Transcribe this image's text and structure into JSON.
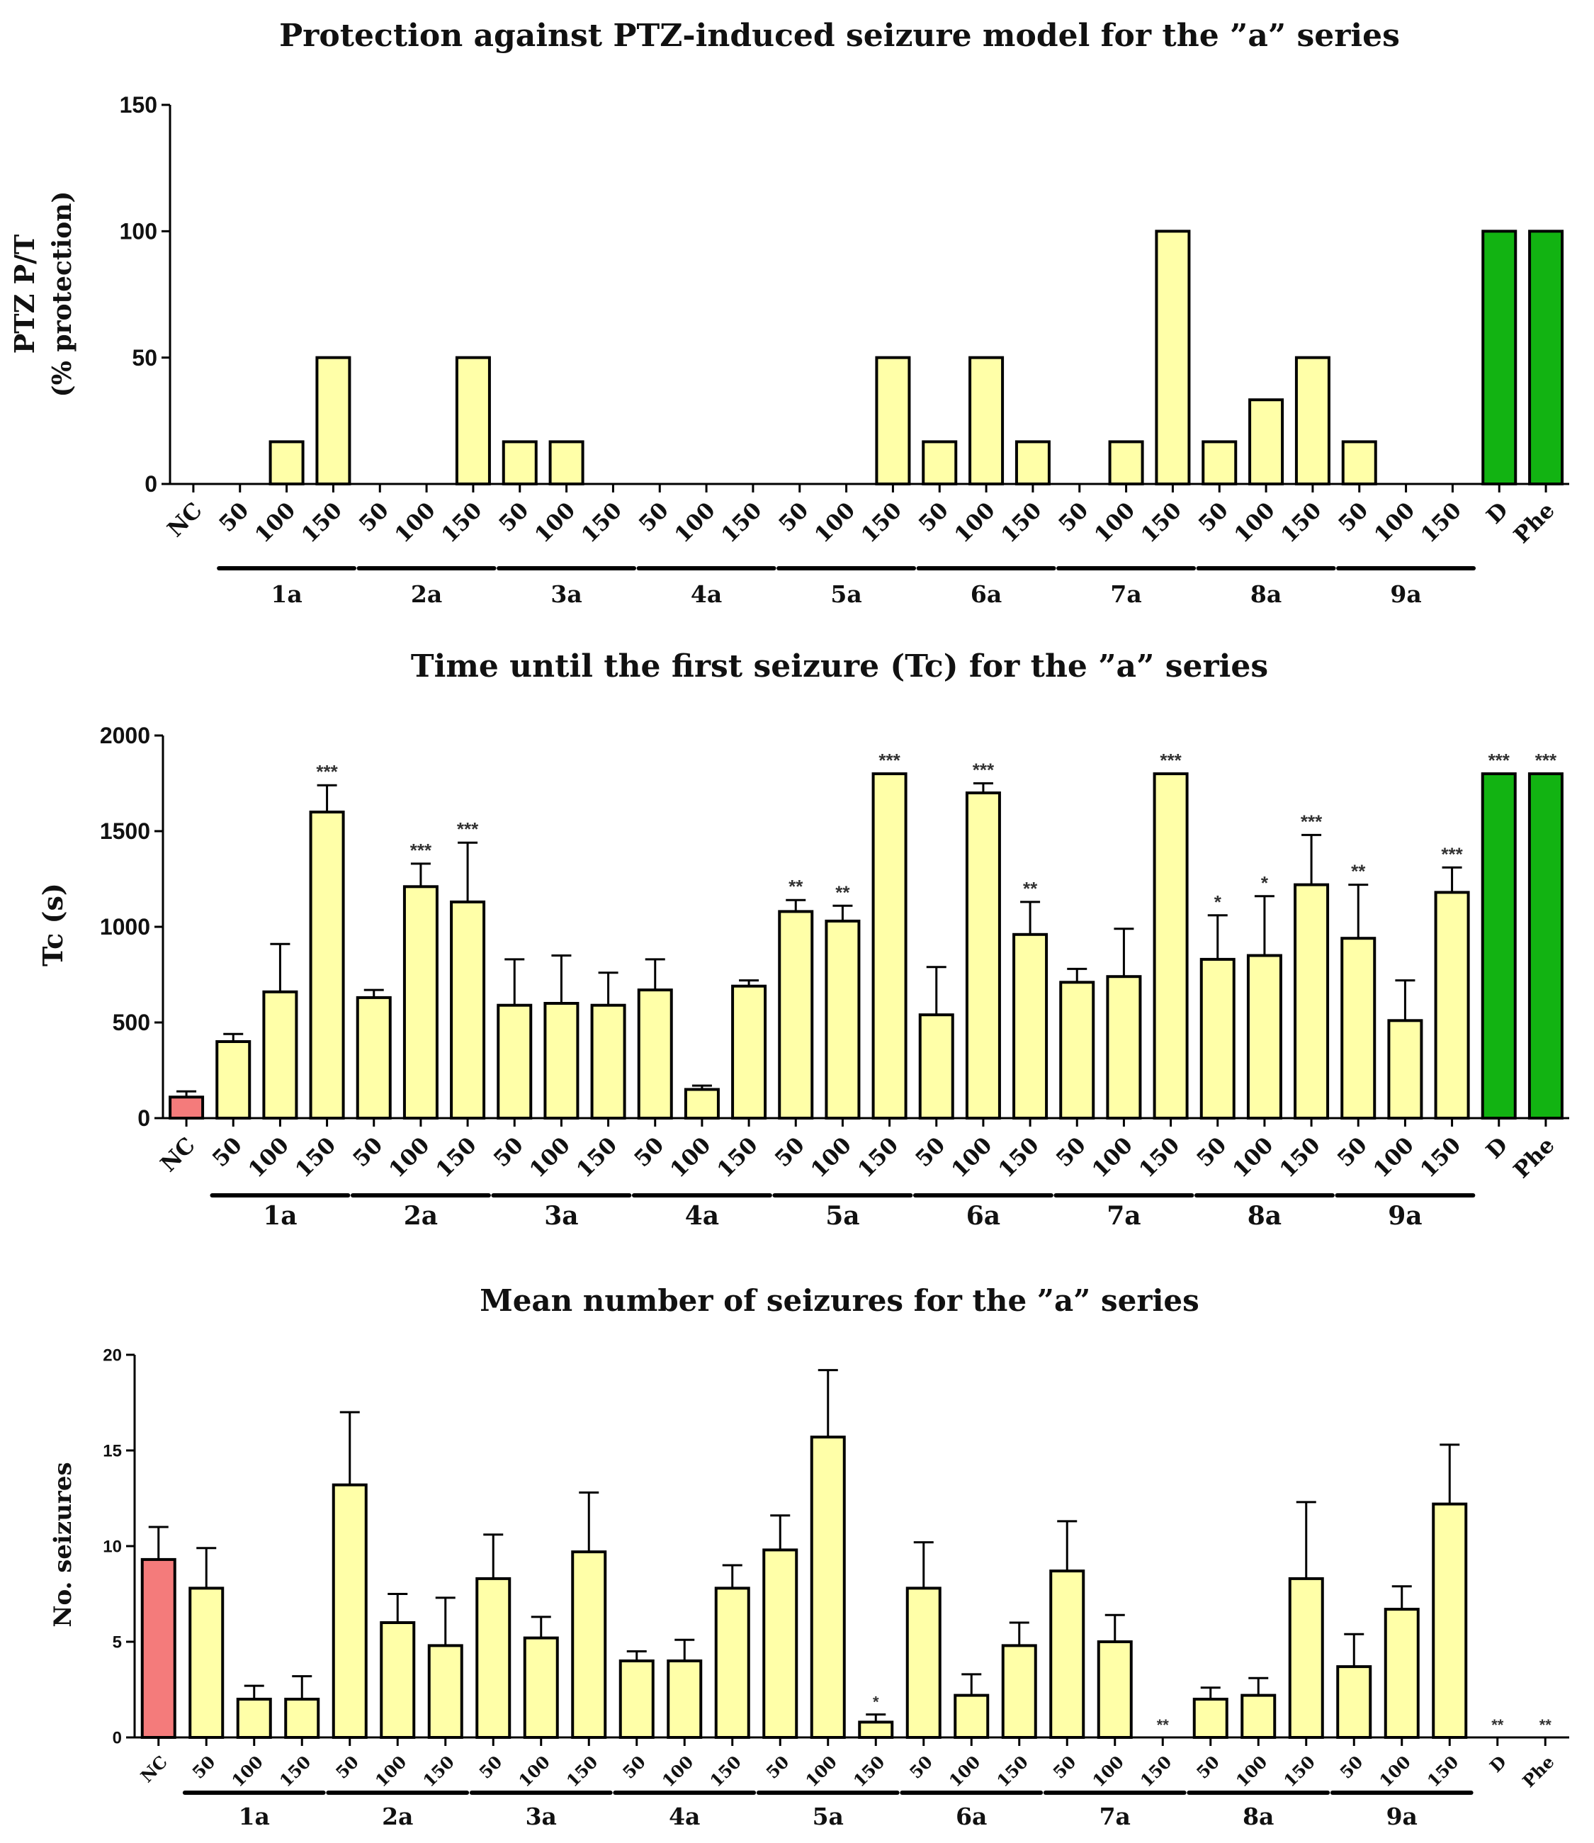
{
  "colors": {
    "control": "#f47b7b",
    "compound": "#ffffa8",
    "reference": "#12b312",
    "stroke": "#000000"
  },
  "categories": [
    "NC",
    "50",
    "100",
    "150",
    "50",
    "100",
    "150",
    "50",
    "100",
    "150",
    "50",
    "100",
    "150",
    "50",
    "100",
    "150",
    "50",
    "100",
    "150",
    "50",
    "100",
    "150",
    "50",
    "100",
    "150",
    "50",
    "100",
    "150",
    "D",
    "Phe"
  ],
  "groups": [
    {
      "label": "1a",
      "from": 1,
      "to": 3
    },
    {
      "label": "2a",
      "from": 4,
      "to": 6
    },
    {
      "label": "3a",
      "from": 7,
      "to": 9
    },
    {
      "label": "4a",
      "from": 10,
      "to": 12
    },
    {
      "label": "5a",
      "from": 13,
      "to": 15
    },
    {
      "label": "6a",
      "from": 16,
      "to": 18
    },
    {
      "label": "7a",
      "from": 19,
      "to": 21
    },
    {
      "label": "8a",
      "from": 22,
      "to": 24
    },
    {
      "label": "9a",
      "from": 25,
      "to": 27
    }
  ],
  "chart_data": [
    {
      "type": "bar",
      "title": "Protection against PTZ-induced seizure model for the ”a” series",
      "ylabel": "PTZ P/T",
      "ylabel2": "(% protection)",
      "ylim": [
        0,
        150
      ],
      "yticks": [
        0,
        50,
        100,
        150
      ],
      "values": [
        0,
        0,
        16.7,
        50,
        0,
        0,
        50,
        16.7,
        16.7,
        0,
        0,
        0,
        0,
        0,
        0,
        50,
        16.7,
        50,
        16.7,
        0,
        16.7,
        100,
        16.7,
        33.3,
        50,
        16.7,
        0,
        0,
        100,
        100
      ]
    },
    {
      "type": "bar",
      "title": "Time until the first seizure (Tc) for the ”a” series",
      "ylabel": "Tc (s)",
      "ylim": [
        0,
        2000
      ],
      "yticks": [
        0,
        500,
        1000,
        1500,
        2000
      ],
      "values": [
        110,
        400,
        660,
        1600,
        630,
        1210,
        1130,
        590,
        600,
        590,
        670,
        150,
        690,
        1080,
        1030,
        1800,
        540,
        1700,
        960,
        710,
        740,
        1800,
        830,
        850,
        1220,
        940,
        510,
        1180,
        1800,
        1800
      ],
      "errors": [
        30,
        40,
        250,
        140,
        40,
        120,
        310,
        240,
        250,
        170,
        160,
        20,
        30,
        60,
        80,
        0,
        250,
        50,
        170,
        70,
        250,
        0,
        230,
        310,
        260,
        280,
        210,
        130,
        0,
        0
      ],
      "significance": [
        "",
        "",
        "",
        "***",
        "",
        "***",
        "***",
        "",
        "",
        "",
        "",
        "",
        "",
        "**",
        "**",
        "***",
        "",
        "***",
        "**",
        "",
        "",
        "***",
        "*",
        "*",
        "***",
        "**",
        "",
        "***",
        "***",
        "***"
      ]
    },
    {
      "type": "bar",
      "title": "Mean number of seizures for the ”a” series",
      "ylabel": "No. seizures",
      "ylim": [
        0,
        20
      ],
      "yticks": [
        0,
        5,
        10,
        15,
        20
      ],
      "values": [
        9.3,
        7.8,
        2.0,
        2.0,
        13.2,
        6.0,
        4.8,
        8.3,
        5.2,
        9.7,
        4.0,
        4.0,
        7.8,
        9.8,
        15.7,
        0.8,
        7.8,
        2.2,
        4.8,
        8.7,
        5.0,
        0,
        2.0,
        2.2,
        8.3,
        3.7,
        6.7,
        12.2,
        0,
        0
      ],
      "errors": [
        1.7,
        2.1,
        0.7,
        1.2,
        3.8,
        1.5,
        2.5,
        2.3,
        1.1,
        3.1,
        0.5,
        1.1,
        1.2,
        1.8,
        3.5,
        0.4,
        2.4,
        1.1,
        1.2,
        2.6,
        1.4,
        0,
        0.6,
        0.9,
        4.0,
        1.7,
        1.2,
        3.1,
        0,
        0
      ],
      "significance": [
        "",
        "",
        "",
        "",
        "",
        "",
        "",
        "",
        "",
        "",
        "",
        "",
        "",
        "",
        "",
        "*",
        "",
        "",
        "",
        "",
        "",
        "**",
        "",
        "",
        "",
        "",
        "",
        "",
        "**",
        "**"
      ]
    }
  ]
}
